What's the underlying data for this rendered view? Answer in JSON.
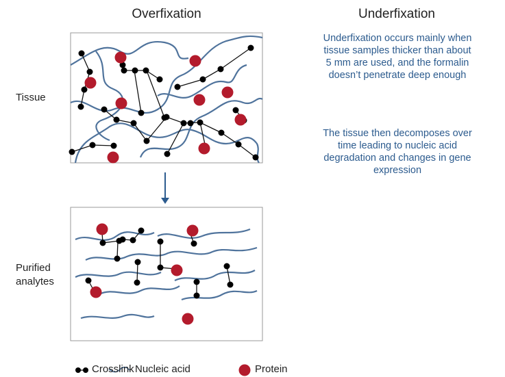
{
  "columns": {
    "left": "Overfixation",
    "right": "Underfixation"
  },
  "rows": {
    "tissue": "Tissue",
    "purified": [
      "Purified",
      "analytes"
    ]
  },
  "description": [
    "Underfixation occurs mainly when tissue samples thicker than about 5 mm are used, and the formalin doesn’t penetrate deep enough",
    "The tissue then decomposes over time leading to nucleic acid degradation and changes in gene expression"
  ],
  "legend": [
    "Crosslink",
    "Nucleic acid",
    "Protein"
  ]
}
